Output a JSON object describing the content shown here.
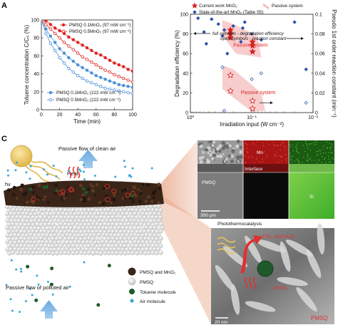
{
  "panels": {
    "a_letter": "A",
    "c_letter": "C"
  },
  "chart_data": [
    {
      "type": "line",
      "xlabel": "Time (min)",
      "ylabel": "Toluene concentration C/C₀ (%)",
      "xlim": [
        0,
        100
      ],
      "ylim": [
        0,
        100
      ],
      "xticks": [
        "0",
        "20",
        "40",
        "60",
        "80",
        "100"
      ],
      "yticks": [
        "0",
        "20",
        "40",
        "60",
        "80",
        "100"
      ],
      "grid": false,
      "series": [
        {
          "name": "PMSQ 0.1MnO₂ (97 mW cm⁻²)",
          "color": "#e02020",
          "marker": "circle-filled",
          "x": [
            0,
            5,
            10,
            15,
            20,
            25,
            30,
            35,
            40,
            45,
            50,
            55,
            60,
            65,
            70,
            75,
            80,
            85,
            90,
            95,
            100
          ],
          "y": [
            100,
            99,
            95,
            91,
            88,
            85,
            81,
            78,
            75,
            72,
            69,
            66,
            63,
            61,
            58,
            55,
            52,
            50,
            48,
            45,
            43
          ]
        },
        {
          "name": "PMSQ 0.5MnO₂ (97 mW cm⁻²)",
          "color": "#e02020",
          "marker": "circle-open",
          "x": [
            0,
            5,
            10,
            15,
            20,
            25,
            30,
            35,
            40,
            45,
            50,
            55,
            60,
            65,
            70,
            75,
            80,
            85,
            90,
            95,
            100
          ],
          "y": [
            100,
            95,
            90,
            85,
            80,
            75,
            71,
            67,
            63,
            59,
            56,
            53,
            50,
            47,
            44,
            42,
            39,
            37,
            35,
            33,
            31
          ]
        },
        {
          "name": "PMSQ 0.1MnO₂ (222 mW cm⁻²)",
          "color": "#4a90d9",
          "marker": "circle-filled",
          "x": [
            0,
            5,
            10,
            15,
            20,
            25,
            30,
            35,
            40,
            45,
            50,
            55,
            60,
            65,
            70,
            75,
            80,
            85,
            90,
            95,
            100
          ],
          "y": [
            100,
            90,
            82,
            75,
            68,
            63,
            58,
            54,
            50,
            47,
            44,
            41,
            38,
            36,
            34,
            32,
            30,
            28,
            27,
            26,
            25
          ]
        },
        {
          "name": "PMSQ 0.5MnO₂ (222 mW cm⁻²)",
          "color": "#4a90d9",
          "marker": "circle-open",
          "x": [
            0,
            5,
            10,
            15,
            20,
            25,
            30,
            35,
            40,
            45,
            50,
            55,
            60,
            65,
            70,
            75,
            80,
            85,
            90,
            95,
            100
          ],
          "y": [
            100,
            85,
            74,
            66,
            58,
            52,
            46,
            42,
            38,
            35,
            32,
            30,
            28,
            26,
            24,
            23,
            22,
            21,
            20,
            19,
            18
          ]
        }
      ]
    },
    {
      "type": "scatter",
      "xlabel": "Irradiation input (W cm⁻²)",
      "ylabel": "Degradation efficiency (%)",
      "ylabel_right": "Pseudo 1st order reaction constant (min⁻¹)",
      "xscale": "log",
      "xlim": [
        1,
        0.01
      ],
      "ylim": [
        0,
        100
      ],
      "ylim_right": [
        0,
        0.1
      ],
      "xticks": [
        "10⁰",
        "10⁻¹",
        "10⁻²"
      ],
      "yticks": [
        "0",
        "20",
        "40",
        "60",
        "80",
        "100"
      ],
      "yticks_right": [
        "0",
        "0.02",
        "0.04",
        "0.06",
        "0.08",
        "0.1"
      ],
      "legend": [
        "Current work MnO₂",
        "State-of-the-art MnO₂ (Table S5)",
        "Passive system"
      ],
      "annotations": [
        "full symbols - degradation efficiency",
        "open symbols - reaction constant",
        "Passive system",
        "Passive system"
      ],
      "series": [
        {
          "name": "Current work MnO₂ (degradation efficiency)",
          "marker": "star-filled",
          "color": "#d42020",
          "x": [
            0.222,
            0.222,
            0.097,
            0.097,
            0.222,
            0.097
          ],
          "y": [
            84,
            80,
            72,
            62,
            76,
            68
          ]
        },
        {
          "name": "Current work MnO₂ (reaction constant)",
          "marker": "star-open",
          "color": "#d42020",
          "x": [
            0.222,
            0.222,
            0.097,
            0.097
          ],
          "y": [
            38,
            22,
            12,
            4
          ]
        },
        {
          "name": "State-of-the-art MnO₂ (degradation efficiency)",
          "marker": "diamond-filled",
          "color": "#2b4fa8",
          "x": [
            0.75,
            0.6,
            0.55,
            0.45,
            0.35,
            0.3,
            0.28,
            0.25,
            0.2,
            0.15,
            0.14,
            0.13,
            0.1,
            0.07,
            0.02,
            0.013
          ],
          "y": [
            96,
            82,
            70,
            95,
            90,
            78,
            84,
            60,
            88,
            72,
            86,
            92,
            80,
            74,
            92,
            44
          ]
        },
        {
          "name": "State-of-the-art MnO₂ (reaction constant)",
          "marker": "diamond-open",
          "color": "#2b4fa8",
          "x": [
            0.3,
            0.28,
            0.1,
            0.07,
            0.013
          ],
          "y": [
            46,
            2,
            34,
            40,
            10
          ]
        }
      ]
    }
  ],
  "panel_c": {
    "hv": "hv",
    "heat": "Heat",
    "flow_clean": "Passive flow of clean air",
    "flow_polluted": "Passive flow of polluted air",
    "legend": [
      {
        "label": "PMSQ and MnO₂",
        "color": "#3a2518"
      },
      {
        "label": "PMSQ",
        "color": "#d8d8d8"
      },
      {
        "label": "Toluene molecule",
        "color": "#1e5a2b"
      },
      {
        "label": "Air molecule",
        "color": "#3aa7d8"
      }
    ],
    "eds": {
      "mno2": "MnO₂",
      "mn": "Mn",
      "interface": "Interface",
      "pmsq": "PMSQ",
      "si": "Si",
      "scale": "300 μm"
    },
    "tem": {
      "title": "Photothermocatalysis",
      "products": "CO₂ and H₂O",
      "mno2": "MnO₂",
      "pmsq": "PMSQ",
      "scale": "20 nm"
    }
  }
}
